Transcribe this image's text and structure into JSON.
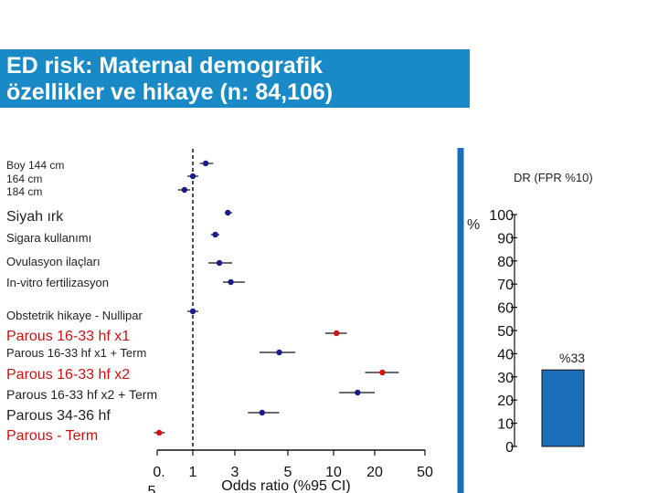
{
  "title": {
    "line1": "ED risk: Maternal demografik",
    "line2": "özellikler ve hikaye (n: 84,106)"
  },
  "chart_data": [
    {
      "type": "forest",
      "xlabel": "Odds ratio (%95 CI)",
      "xscale": "log",
      "xticks": [
        "0.5",
        "1",
        "3",
        "5",
        "10",
        "20",
        "50"
      ],
      "reference_line": 1,
      "rows": [
        {
          "label": "Boy 144 cm",
          "or": 1.4,
          "lo": 1.2,
          "hi": 1.7,
          "color": "navy"
        },
        {
          "label": "164 cm",
          "or": 1.0,
          "lo": 1.0,
          "hi": 1.0,
          "color": "navy"
        },
        {
          "label": "184 cm",
          "or": 0.85,
          "lo": 0.75,
          "hi": 0.95,
          "color": "navy"
        },
        {
          "label": "Siyah ırk",
          "or": 2.5,
          "lo": 2.3,
          "hi": 2.8,
          "color": "navy"
        },
        {
          "label": "Sigara  kullanımı",
          "or": 1.8,
          "lo": 1.6,
          "hi": 2.0,
          "color": "navy"
        },
        {
          "label": "Ovulasyon ilaçları",
          "or": 2.0,
          "lo": 1.5,
          "hi": 2.8,
          "color": "navy"
        },
        {
          "label": "In-vitro fertilizasyon",
          "or": 2.7,
          "lo": 2.2,
          "hi": 3.3,
          "color": "navy"
        },
        {
          "label": "Obstetrik hikaye - Nullipar",
          "or": 1.0,
          "lo": 1.0,
          "hi": 1.0,
          "color": "navy"
        },
        {
          "label": "Parous 16-33 hf x1",
          "or": 10.5,
          "lo": 8.8,
          "hi": 12.5,
          "color": "red"
        },
        {
          "label": "Parous 16-33 hf x1 + Term",
          "or": 4.6,
          "lo": 3.8,
          "hi": 5.6,
          "color": "navy"
        },
        {
          "label": "Parous 16-33 hf x2",
          "or": 23,
          "lo": 17,
          "hi": 31,
          "color": "red"
        },
        {
          "label": "Parous 16-33 hf x2 + Term",
          "or": 15,
          "lo": 11,
          "hi": 20,
          "color": "navy"
        },
        {
          "label": "Parous 34-36 hf",
          "or": 3.9,
          "lo": 3.4,
          "hi": 4.6,
          "color": "navy"
        },
        {
          "label": "Parous - Term",
          "or": 0.52,
          "lo": 0.47,
          "hi": 0.58,
          "color": "red"
        }
      ]
    },
    {
      "type": "bar",
      "title": "DR  (FPR %10)",
      "ylabel": "%",
      "ylim": [
        0,
        100
      ],
      "yticks": [
        "0",
        "10",
        "20",
        "30",
        "40",
        "50",
        "60",
        "70",
        "80",
        "90",
        "100"
      ],
      "values": [
        33
      ],
      "value_label": "%33",
      "color": "#1a6fb8"
    }
  ],
  "colors": {
    "title_bg": "#1a8ac7",
    "navy": "#1c1c8c",
    "red": "#d41414",
    "bar": "#1a6fb8",
    "divider": "#1a6fb8"
  }
}
